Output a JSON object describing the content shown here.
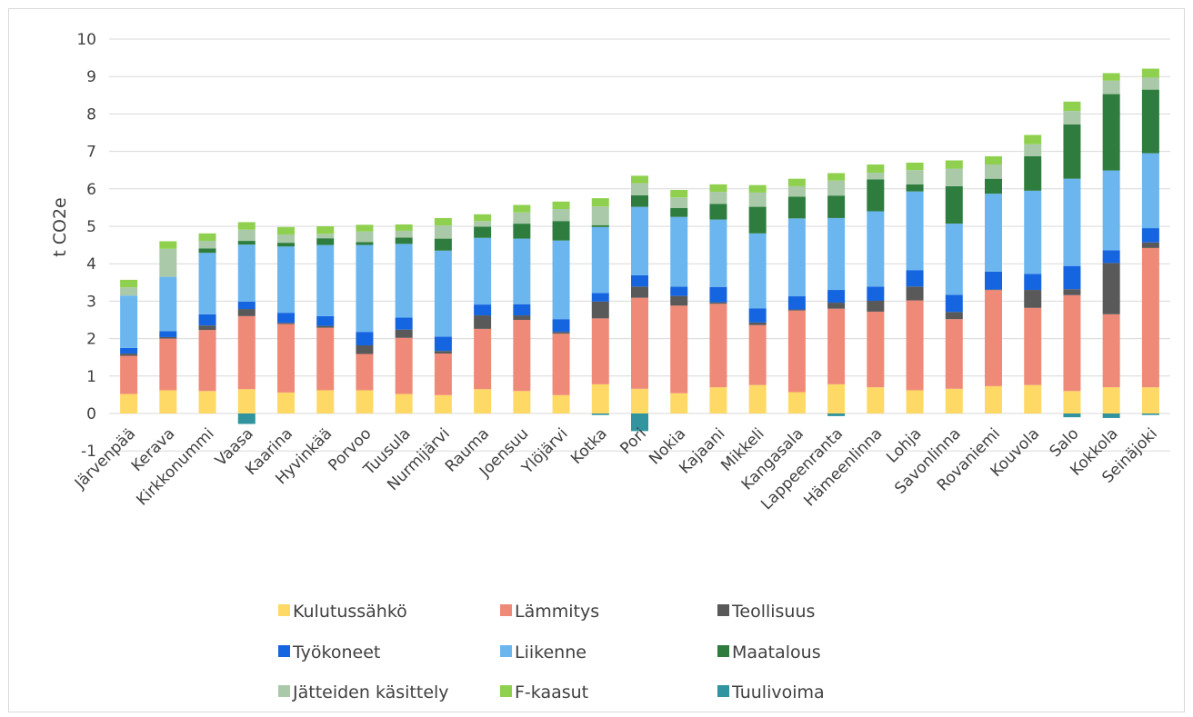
{
  "chart_data": {
    "type": "bar",
    "stacked": true,
    "ylabel": "t CO2e",
    "ylim": [
      -1,
      10
    ],
    "yticks": [
      -1,
      0,
      1,
      2,
      3,
      4,
      5,
      6,
      7,
      8,
      9,
      10
    ],
    "grid": true,
    "legend_position": "bottom",
    "categories": [
      "Järvenpää",
      "Kerava",
      "Kirkkonummi",
      "Vaasa",
      "Kaarina",
      "Hyvinkää",
      "Porvoo",
      "Tuusula",
      "Nurmijärvi",
      "Rauma",
      "Joensuu",
      "Ylöjärvi",
      "Kotka",
      "Pori",
      "Nokia",
      "Kajaani",
      "Mikkeli",
      "Kangasala",
      "Lappeenranta",
      "Hämeenlinna",
      "Lohja",
      "Savonlinna",
      "Rovaniemi",
      "Kouvola",
      "Salo",
      "Kokkola",
      "Seinäjoki"
    ],
    "series": [
      {
        "name": "Kulutussähkö",
        "color": "#ffd966",
        "values": [
          0.52,
          0.62,
          0.6,
          0.65,
          0.56,
          0.62,
          0.62,
          0.52,
          0.49,
          0.65,
          0.6,
          0.49,
          0.78,
          0.66,
          0.54,
          0.7,
          0.76,
          0.57,
          0.78,
          0.7,
          0.62,
          0.66,
          0.73,
          0.76,
          0.6,
          0.7,
          0.7
        ]
      },
      {
        "name": "Lämmitys",
        "color": "#f08a78",
        "values": [
          1.02,
          1.38,
          1.63,
          1.95,
          1.83,
          1.67,
          0.97,
          1.5,
          1.11,
          1.61,
          1.9,
          1.64,
          1.76,
          2.43,
          2.34,
          2.23,
          1.6,
          2.18,
          2.02,
          2.02,
          2.4,
          1.86,
          2.57,
          2.06,
          2.56,
          1.95,
          3.72
        ]
      },
      {
        "name": "Teollisuus",
        "color": "#595959",
        "values": [
          0.06,
          0.04,
          0.12,
          0.19,
          0.03,
          0.05,
          0.23,
          0.22,
          0.07,
          0.36,
          0.12,
          0.05,
          0.45,
          0.3,
          0.26,
          0.04,
          0.07,
          0.03,
          0.16,
          0.29,
          0.37,
          0.19,
          0.01,
          0.48,
          0.16,
          1.37,
          0.15
        ]
      },
      {
        "name": "Työkoneet",
        "color": "#1565e0",
        "values": [
          0.15,
          0.16,
          0.3,
          0.2,
          0.27,
          0.26,
          0.36,
          0.32,
          0.38,
          0.29,
          0.3,
          0.34,
          0.23,
          0.3,
          0.25,
          0.41,
          0.38,
          0.35,
          0.34,
          0.38,
          0.44,
          0.46,
          0.48,
          0.43,
          0.62,
          0.34,
          0.38
        ]
      },
      {
        "name": "Liikenne",
        "color": "#6cb6f0",
        "values": [
          1.4,
          1.45,
          1.64,
          1.52,
          1.77,
          1.9,
          2.32,
          1.97,
          2.3,
          1.78,
          1.75,
          2.1,
          1.76,
          1.83,
          1.86,
          1.8,
          2.0,
          2.08,
          1.92,
          2.01,
          2.1,
          1.9,
          2.08,
          2.22,
          2.33,
          2.13,
          2.0
        ]
      },
      {
        "name": "Maatalous",
        "color": "#2e7d3e",
        "values": [
          0.0,
          0.0,
          0.12,
          0.1,
          0.1,
          0.18,
          0.08,
          0.17,
          0.32,
          0.3,
          0.4,
          0.52,
          0.05,
          0.31,
          0.24,
          0.42,
          0.71,
          0.58,
          0.6,
          0.85,
          0.19,
          1.0,
          0.4,
          0.92,
          1.45,
          2.04,
          1.7
        ]
      },
      {
        "name": "Jätteiden käsittely",
        "color": "#a9c9a8",
        "values": [
          0.22,
          0.75,
          0.2,
          0.3,
          0.22,
          0.12,
          0.28,
          0.18,
          0.35,
          0.15,
          0.3,
          0.32,
          0.5,
          0.32,
          0.28,
          0.32,
          0.38,
          0.28,
          0.4,
          0.18,
          0.38,
          0.47,
          0.38,
          0.32,
          0.36,
          0.36,
          0.32
        ]
      },
      {
        "name": "F-kaasut",
        "color": "#8fd14f",
        "values": [
          0.2,
          0.2,
          0.2,
          0.2,
          0.2,
          0.2,
          0.18,
          0.17,
          0.2,
          0.18,
          0.2,
          0.2,
          0.22,
          0.2,
          0.2,
          0.2,
          0.2,
          0.2,
          0.2,
          0.22,
          0.2,
          0.22,
          0.22,
          0.25,
          0.25,
          0.2,
          0.24
        ]
      },
      {
        "name": "Tuulivoima",
        "color": "#31949e",
        "values": [
          0,
          0,
          0,
          -0.28,
          0,
          0,
          0,
          0,
          0,
          0,
          0,
          0,
          -0.04,
          -0.47,
          0,
          0,
          0,
          0,
          -0.07,
          0,
          0,
          0,
          0,
          0,
          -0.1,
          -0.12,
          -0.04
        ]
      }
    ]
  }
}
